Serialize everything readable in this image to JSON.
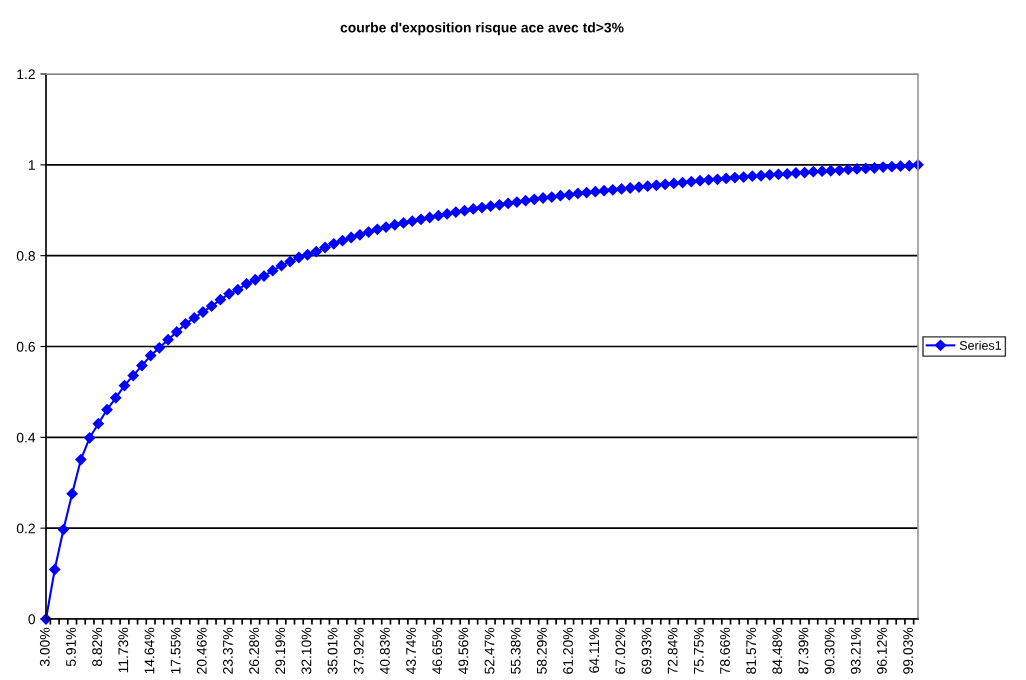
{
  "chart_data": {
    "type": "line",
    "title": "courbe d'exposition risque ace avec td>3%",
    "categories": [
      "3.00%",
      null,
      null,
      "5.91%",
      null,
      null,
      "8.82%",
      null,
      null,
      "11.73%",
      null,
      null,
      "14.64%",
      null,
      null,
      "17.55%",
      null,
      null,
      "20.46%",
      null,
      null,
      "23.37%",
      null,
      null,
      "26.28%",
      null,
      null,
      "29.19%",
      null,
      null,
      "32.10%",
      null,
      null,
      "35.01%",
      null,
      null,
      "37.92%",
      null,
      null,
      "40.83%",
      null,
      null,
      "43.74%",
      null,
      null,
      "46.65%",
      null,
      null,
      "49.56%",
      null,
      null,
      "52.47%",
      null,
      null,
      "55.38%",
      null,
      null,
      "58.29%",
      null,
      null,
      "61.20%",
      null,
      null,
      "64.11%",
      null,
      null,
      "67.02%",
      null,
      null,
      "69.93%",
      null,
      null,
      "72.84%",
      null,
      null,
      "75.75%",
      null,
      null,
      "78.66%",
      null,
      null,
      "81.57%",
      null,
      null,
      "84.48%",
      null,
      null,
      "87.39%",
      null,
      null,
      "90.30%",
      null,
      null,
      "93.21%",
      null,
      null,
      "96.12%",
      null,
      null,
      "99.03%",
      null
    ],
    "series": [
      {
        "name": "Series1",
        "color": "#0000ff",
        "values": [
          0,
          0.109,
          0.197,
          0.276,
          0.351,
          0.399,
          0.43,
          0.461,
          0.487,
          0.514,
          0.536,
          0.558,
          0.58,
          0.597,
          0.615,
          0.632,
          0.65,
          0.663,
          0.676,
          0.689,
          0.703,
          0.716,
          0.725,
          0.738,
          0.747,
          0.755,
          0.767,
          0.778,
          0.787,
          0.796,
          0.802,
          0.809,
          0.818,
          0.826,
          0.833,
          0.84,
          0.846,
          0.852,
          0.858,
          0.863,
          0.868,
          0.872,
          0.876,
          0.88,
          0.884,
          0.888,
          0.892,
          0.896,
          0.899,
          0.903,
          0.906,
          0.909,
          0.912,
          0.915,
          0.918,
          0.921,
          0.924,
          0.927,
          0.929,
          0.932,
          0.934,
          0.937,
          0.939,
          0.941,
          0.943,
          0.945,
          0.947,
          0.949,
          0.951,
          0.953,
          0.955,
          0.957,
          0.959,
          0.961,
          0.963,
          0.965,
          0.967,
          0.968,
          0.97,
          0.972,
          0.973,
          0.975,
          0.976,
          0.978,
          0.979,
          0.98,
          0.982,
          0.983,
          0.985,
          0.986,
          0.987,
          0.988,
          0.99,
          0.991,
          0.992,
          0.993,
          0.995,
          0.996,
          0.997,
          0.998,
          1.0
        ]
      }
    ],
    "ylim": [
      0,
      1.2
    ],
    "yticks": [
      0,
      0.2,
      0.4,
      0.6,
      0.8,
      1,
      1.2
    ],
    "grid": "y",
    "legend": "right",
    "marker": "diamond",
    "line_style": "solid"
  }
}
